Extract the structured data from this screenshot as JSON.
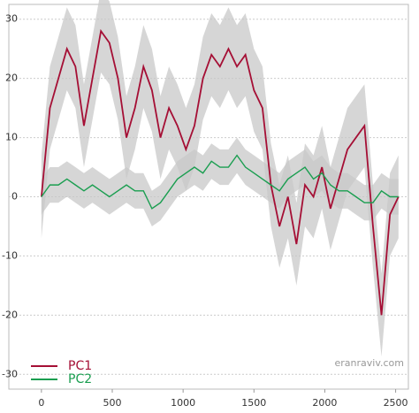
{
  "chart_data": {
    "type": "line",
    "x": [
      0,
      60,
      120,
      180,
      240,
      300,
      360,
      420,
      480,
      540,
      600,
      660,
      720,
      780,
      840,
      900,
      960,
      1020,
      1080,
      1140,
      1200,
      1260,
      1320,
      1380,
      1440,
      1500,
      1560,
      1620,
      1680,
      1740,
      1800,
      1860,
      1920,
      1980,
      2040,
      2100,
      2160,
      2220,
      2280,
      2340,
      2400,
      2460,
      2520
    ],
    "series": [
      {
        "name": "PC1",
        "color": "#a50f35",
        "values": [
          0,
          15,
          20,
          25,
          22,
          12,
          20,
          28,
          26,
          20,
          10,
          15,
          22,
          18,
          10,
          15,
          12,
          8,
          12,
          20,
          24,
          22,
          25,
          22,
          24,
          18,
          15,
          2,
          -5,
          0,
          -8,
          2,
          0,
          5,
          -2,
          3,
          8,
          10,
          12,
          -5,
          -20,
          -3,
          0
        ],
        "lower": [
          -7,
          8,
          13,
          18,
          15,
          5,
          13,
          21,
          19,
          13,
          3,
          8,
          15,
          11,
          3,
          8,
          5,
          1,
          5,
          13,
          17,
          15,
          18,
          15,
          17,
          11,
          8,
          -5,
          -12,
          -7,
          -15,
          -5,
          -7,
          -2,
          -9,
          -4,
          1,
          3,
          5,
          -12,
          -27,
          -10,
          -7
        ],
        "upper": [
          7,
          22,
          27,
          32,
          29,
          19,
          27,
          35,
          33,
          27,
          17,
          22,
          29,
          25,
          17,
          22,
          19,
          15,
          19,
          27,
          31,
          29,
          32,
          29,
          31,
          25,
          22,
          9,
          2,
          7,
          -1,
          9,
          7,
          12,
          5,
          10,
          15,
          17,
          19,
          2,
          -13,
          4,
          7
        ]
      },
      {
        "name": "PC2",
        "color": "#1a9e50",
        "values": [
          0,
          2,
          2,
          3,
          2,
          1,
          2,
          1,
          0,
          1,
          2,
          1,
          1,
          -2,
          -1,
          1,
          3,
          4,
          5,
          4,
          6,
          5,
          5,
          7,
          5,
          4,
          3,
          2,
          1,
          3,
          4,
          5,
          3,
          4,
          2,
          1,
          1,
          0,
          -1,
          -1,
          1,
          0,
          0
        ],
        "lower": [
          -3,
          -1,
          -1,
          0,
          -1,
          -2,
          -1,
          -2,
          -3,
          -2,
          -1,
          -2,
          -2,
          -5,
          -4,
          -2,
          0,
          1,
          2,
          1,
          3,
          2,
          2,
          4,
          2,
          1,
          0,
          -1,
          -2,
          0,
          1,
          2,
          0,
          1,
          -1,
          -2,
          -2,
          -3,
          -4,
          -4,
          -2,
          -3,
          -3
        ],
        "upper": [
          3,
          5,
          5,
          6,
          5,
          4,
          5,
          4,
          3,
          4,
          5,
          4,
          4,
          1,
          2,
          4,
          6,
          7,
          8,
          7,
          9,
          8,
          8,
          10,
          8,
          7,
          6,
          5,
          4,
          6,
          7,
          8,
          6,
          7,
          5,
          4,
          4,
          3,
          2,
          2,
          4,
          3,
          3
        ]
      }
    ],
    "band_color": "#c8c8c8",
    "xlim": [
      -230,
      2590
    ],
    "xticks": [
      0,
      500,
      1000,
      1500,
      2000,
      2500
    ],
    "ylim": [
      -32.5,
      32.5
    ],
    "yticks": [
      -30,
      -20,
      -10,
      0,
      10,
      20,
      30
    ],
    "grid": true,
    "legend": "lower left",
    "annotation": "eranraviv.com"
  }
}
